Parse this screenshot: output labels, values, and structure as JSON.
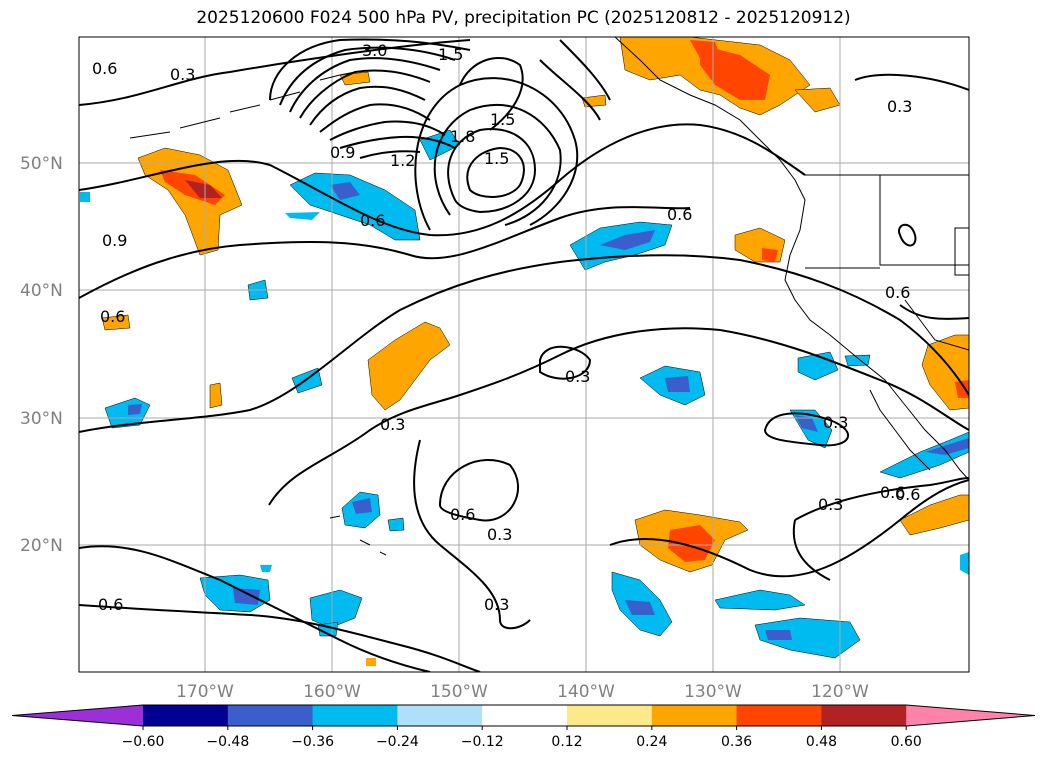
{
  "title": "2025120600 F024 500 hPa PV, precipitation PC (2025120812 - 2025120912)",
  "lat_labels": [
    "50°N",
    "40°N",
    "30°N",
    "20°N"
  ],
  "lon_labels": [
    "170°W",
    "160°W",
    "150°W",
    "140°W",
    "130°W",
    "120°W"
  ],
  "contour_labels": [
    "3.0",
    "1.5",
    "1.8",
    "1.5",
    "1.5",
    "1.2",
    "0.9",
    "0.6",
    "0.3",
    "0.6",
    "0.9",
    "0.6",
    "0.6",
    "0.3",
    "0.3",
    "0.6",
    "0.3",
    "0.3",
    "0.6",
    "0.3",
    "0.6",
    "0.3",
    "0.6",
    "0.3",
    "0.6"
  ],
  "colorbar": {
    "colors": [
      "#9b30d9",
      "#000093",
      "#3a5fcd",
      "#00bbf0",
      "#aee0fa",
      "#ffffff",
      "#fce98a",
      "#ffa500",
      "#ff4500",
      "#b22222",
      "#ff82ab"
    ],
    "ticks": [
      "−0.60",
      "−0.48",
      "−0.36",
      "−0.24",
      "−0.12",
      "0.12",
      "0.24",
      "0.36",
      "0.48",
      "0.60"
    ]
  }
}
